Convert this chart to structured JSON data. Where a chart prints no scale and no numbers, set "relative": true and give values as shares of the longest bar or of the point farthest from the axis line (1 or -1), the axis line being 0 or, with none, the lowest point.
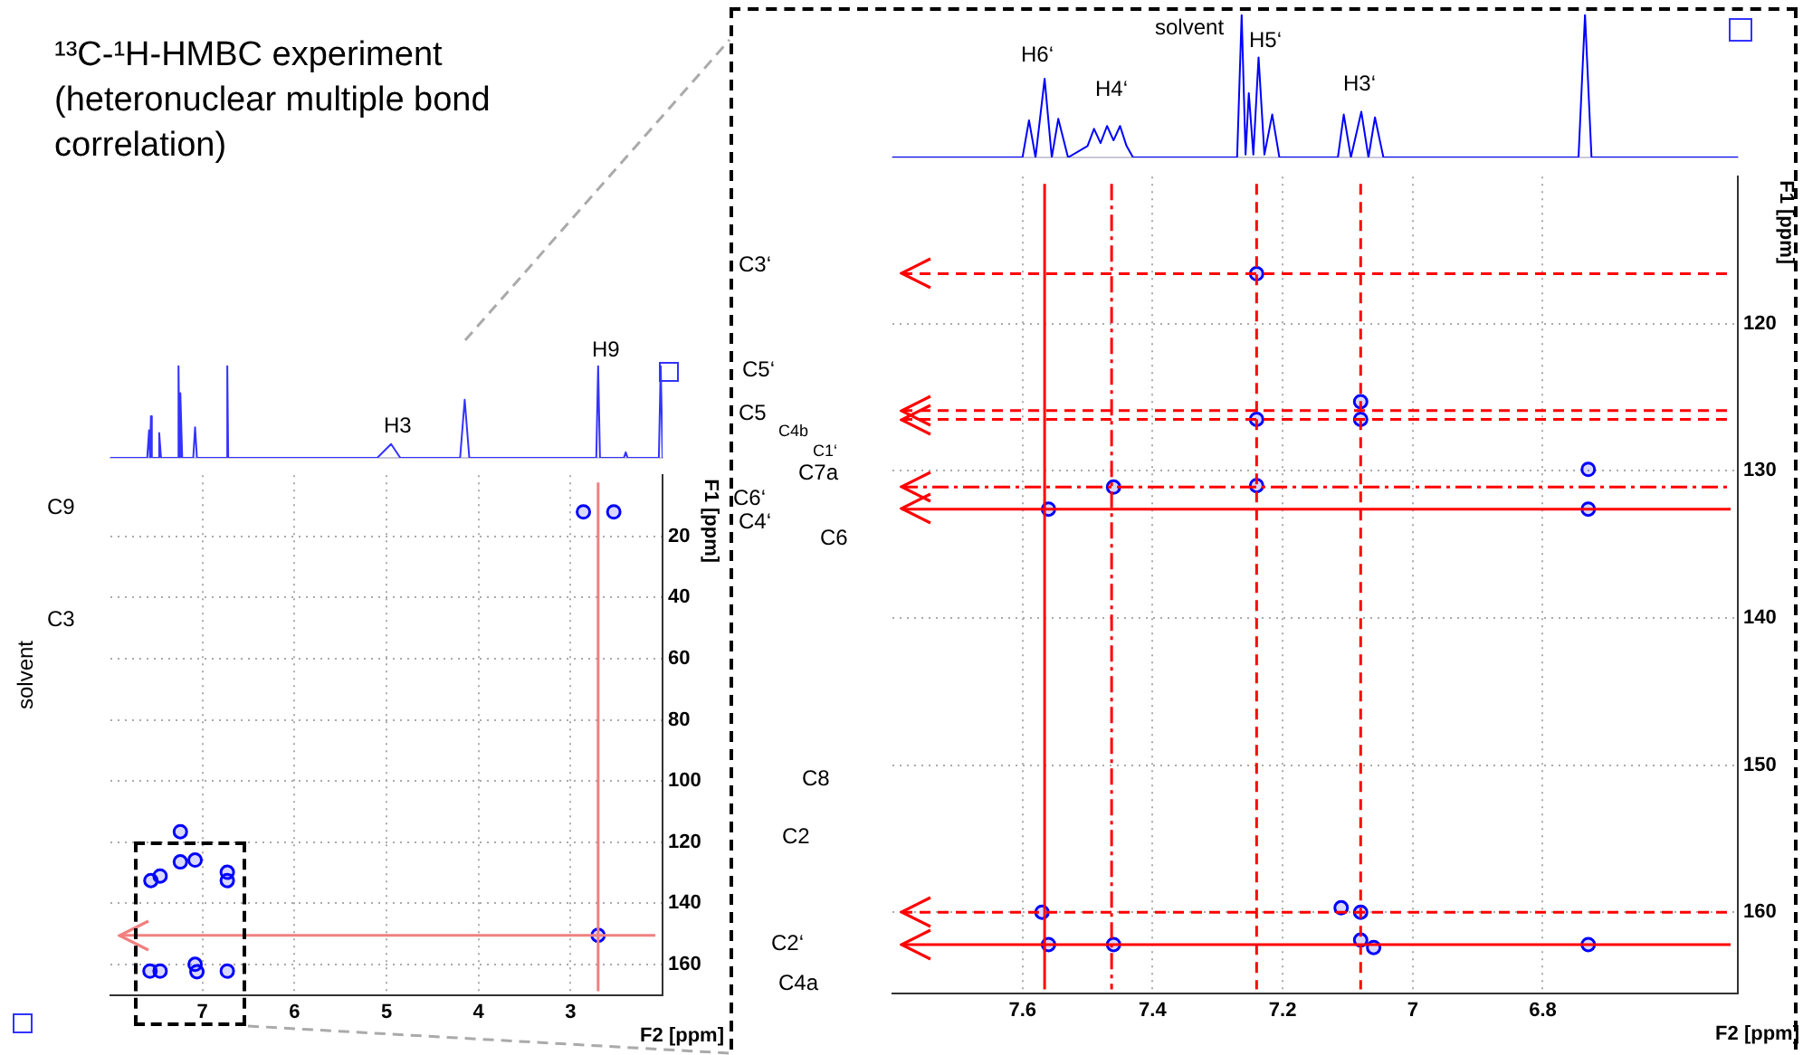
{
  "chart_data": [
    {
      "type": "other",
      "title": "¹³C-¹H-HMBC experiment (heteronuclear multiple bond correlation)"
    },
    {
      "type": "line",
      "relative": true,
      "tick_labels": false,
      "xlim": [
        8.0,
        2.0
      ],
      "xticks": [
        7,
        6,
        5,
        4,
        3
      ],
      "marker": "none",
      "grid": false,
      "legend": false,
      "annotations": [
        "H3",
        "H9"
      ],
      "series": [
        {
          "color": "#3333ff",
          "x": [
            8.0,
            7.6,
            7.58,
            7.57,
            7.56,
            7.55,
            7.48,
            7.47,
            7.45,
            7.27,
            7.26,
            7.25,
            7.24,
            7.22,
            7.1,
            7.08,
            7.06,
            6.74,
            6.73,
            6.72,
            5.1,
            4.95,
            4.85,
            4.2,
            4.15,
            4.1,
            2.72,
            2.7,
            2.68,
            2.42,
            2.4,
            2.38,
            2.04,
            2.02,
            2.0
          ],
          "values": [
            0,
            0,
            0.3,
            0,
            0.45,
            0,
            0,
            0.27,
            0,
            0,
            1,
            0,
            0.7,
            0,
            0,
            0.33,
            0,
            0,
            1,
            0,
            0,
            0.15,
            0,
            0,
            0.63,
            0,
            0,
            1,
            0,
            0,
            0.06,
            0,
            0,
            1,
            0
          ]
        }
      ]
    },
    {
      "type": "scatter",
      "xlim": [
        8.0,
        2.0
      ],
      "ylim": [
        170,
        0
      ],
      "xticks": [
        7,
        6,
        5,
        4,
        3
      ],
      "yticks": [
        20,
        40,
        60,
        80,
        100,
        120,
        140,
        160
      ],
      "xlabel": "F2 [ppm]",
      "ylabel": "F1 [ppm]",
      "grid": true,
      "marker": "circle",
      "legend": false,
      "x": [
        2.86,
        2.53,
        2.7,
        7.24,
        7.24,
        7.08,
        7.56,
        7.46,
        6.73,
        6.73,
        7.57,
        7.46,
        7.08,
        7.06,
        6.73
      ],
      "values": [
        12,
        12,
        150.5,
        116.6,
        126.5,
        125.9,
        132.6,
        131.1,
        129.9,
        132.6,
        162.2,
        162.2,
        160,
        162.4,
        162.2
      ],
      "color": "#0000ff",
      "ref_lines": [
        {
          "axis": "x",
          "value": 2.7,
          "color": "#f08080",
          "line_style": "solid"
        },
        {
          "axis": "y",
          "value": 150.5,
          "color": "#f08080",
          "line_style": "solid"
        }
      ],
      "annotations": [
        "C9",
        "C3",
        "solvent"
      ]
    },
    {
      "type": "line",
      "relative": true,
      "tick_labels": false,
      "xlim": [
        7.8,
        6.5
      ],
      "xticks": [
        7.6,
        7.4,
        7.2,
        7.0,
        6.8
      ],
      "marker": "none",
      "grid": false,
      "legend": false,
      "annotations": [
        "H6‘",
        "H4‘",
        "solvent",
        "H5‘",
        "H3‘"
      ],
      "series": [
        {
          "color": "#0000ff",
          "x": [
            7.8,
            7.6,
            7.59,
            7.58,
            7.566,
            7.555,
            7.545,
            7.53,
            7.5,
            7.49,
            7.48,
            7.47,
            7.46,
            7.45,
            7.44,
            7.43,
            7.27,
            7.263,
            7.257,
            7.252,
            7.245,
            7.237,
            7.228,
            7.216,
            7.205,
            7.115,
            7.106,
            7.095,
            7.079,
            7.068,
            7.058,
            7.045,
            6.745,
            6.735,
            6.725,
            6.5
          ],
          "values": [
            0,
            0,
            0.26,
            0,
            0.55,
            0,
            0.27,
            0,
            0.08,
            0.2,
            0.1,
            0.22,
            0.12,
            0.22,
            0.08,
            0,
            0,
            1,
            0.02,
            0.45,
            0.02,
            0.7,
            0.02,
            0.3,
            0,
            0,
            0.3,
            0,
            0.32,
            0,
            0.28,
            0,
            0,
            1,
            0,
            0
          ]
        }
      ]
    },
    {
      "type": "scatter",
      "xlim": [
        7.8,
        6.5
      ],
      "ylim": [
        165.5,
        110
      ],
      "xticks": [
        7.6,
        7.4,
        7.2,
        7.0,
        6.8
      ],
      "yticks": [
        120,
        130,
        140,
        150,
        160
      ],
      "xlabel": "F2 [ppm]",
      "ylabel": "F1 [ppm]",
      "grid": true,
      "marker": "circle",
      "legend": false,
      "x": [
        7.24,
        7.24,
        7.08,
        7.08,
        7.56,
        7.46,
        7.24,
        6.73,
        6.73,
        7.57,
        7.56,
        7.46,
        7.11,
        7.08,
        7.08,
        7.06,
        6.73
      ],
      "values": [
        116.6,
        126.5,
        125.3,
        126.5,
        132.6,
        131.1,
        131.0,
        129.9,
        132.6,
        160,
        162.2,
        162.2,
        159.7,
        160,
        161.9,
        162.4,
        162.2
      ],
      "color": "#0000ff",
      "ref_lines": [
        {
          "axis": "x",
          "value": 7.566,
          "color": "#ff0000",
          "line_style": "solid"
        },
        {
          "axis": "x",
          "value": 7.463,
          "color": "#ff0000",
          "line_style": "dashdot"
        },
        {
          "axis": "x",
          "value": 7.24,
          "color": "#ff0000",
          "line_style": "dashed"
        },
        {
          "axis": "x",
          "value": 7.08,
          "color": "#ff0000",
          "line_style": "dashed"
        },
        {
          "axis": "y",
          "value": 116.6,
          "color": "#ff0000",
          "line_style": "dashed"
        },
        {
          "axis": "y",
          "value": 125.9,
          "color": "#ff0000",
          "line_style": "dashed"
        },
        {
          "axis": "y",
          "value": 126.5,
          "color": "#ff0000",
          "line_style": "dashed"
        },
        {
          "axis": "y",
          "value": 131.1,
          "color": "#ff0000",
          "line_style": "dashdot"
        },
        {
          "axis": "y",
          "value": 132.6,
          "color": "#ff0000",
          "line_style": "solid"
        },
        {
          "axis": "y",
          "value": 160,
          "color": "#ff0000",
          "line_style": "dashed"
        },
        {
          "axis": "y",
          "value": 162.2,
          "color": "#ff0000",
          "line_style": "solid"
        }
      ],
      "annotations": [
        "C3‘",
        "C5‘",
        "C5",
        "C4b",
        "C1‘",
        "C7a",
        "C6‘",
        "C4‘",
        "C6",
        "C8",
        "C2",
        "C2‘",
        "C4a"
      ]
    }
  ]
}
